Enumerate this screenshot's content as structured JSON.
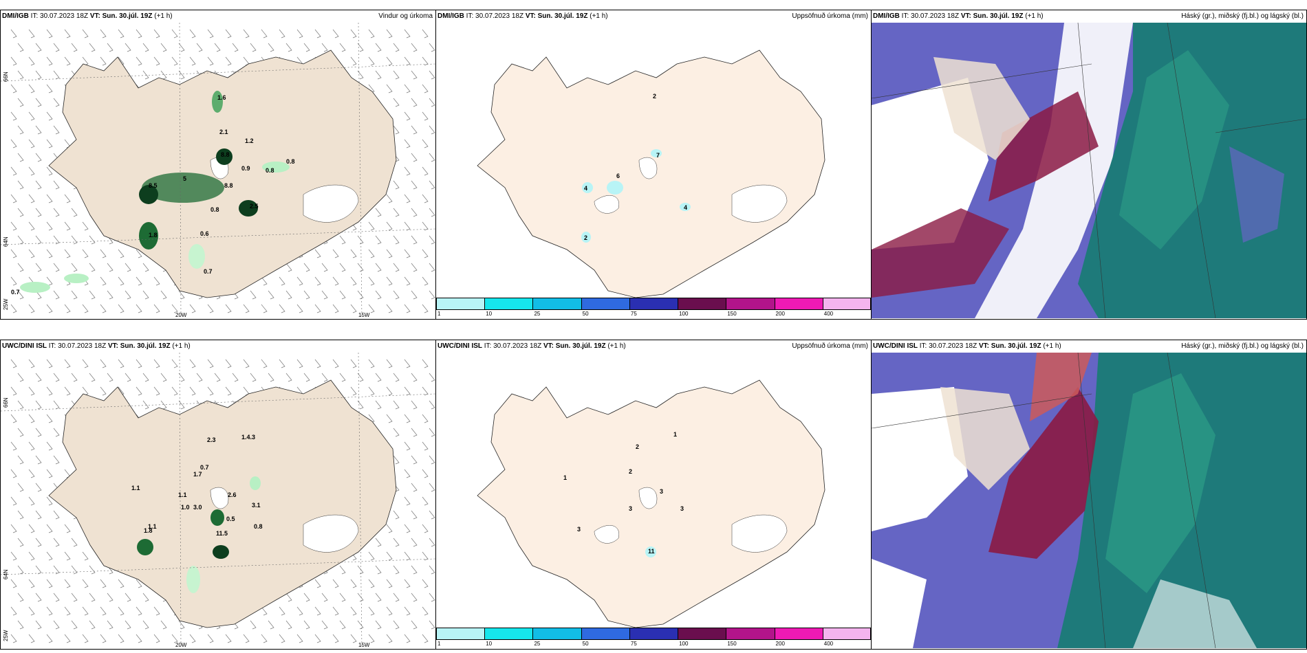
{
  "panels": [
    {
      "model": "DMI/IGB",
      "it": "IT: 30.07.2023 18Z",
      "vt_label": "VT:",
      "vt": "Sun. 30.júl. 19Z",
      "lead": "(+1 h)",
      "right": "Vindur og úrkoma"
    },
    {
      "model": "DMI/IGB",
      "it": "IT: 30.07.2023 18Z",
      "vt_label": "VT:",
      "vt": "Sun. 30.júl. 19Z",
      "lead": "(+1 h)",
      "right": "Uppsöfnuð úrkoma (mm)"
    },
    {
      "model": "DMI/IGB",
      "it": "IT: 30.07.2023 18Z",
      "vt_label": "VT:",
      "vt": "Sun. 30.júl. 19Z",
      "lead": "(+1 h)",
      "right": "Háský (gr.), miðský (fj.bl.) og lágský (bl.)"
    },
    {
      "model": "UWC/DINI ISL",
      "it": "IT: 30.07.2023 18Z",
      "vt_label": "VT:",
      "vt": "Sun. 30.júl. 19Z",
      "lead": "(+1 h)",
      "right": "Uppsöfnuð úrkoma (mm)"
    },
    {
      "model": "UWC/DINI ISL",
      "it": "IT: 30.07.2023 18Z",
      "vt_label": "VT:",
      "vt": "Sun. 30.júl. 19Z",
      "lead": "(+1 h)",
      "right": "Uppsöfnuð úrkoma (mm)"
    },
    {
      "model": "UWC/DINI ISL",
      "it": "IT: 30.07.2023 18Z",
      "vt_label": "VT:",
      "vt": "Sun. 30.júl. 19Z",
      "lead": "(+1 h)",
      "right": "Háský (gr.), miðský (fj.bl.) og lágský (bl.)"
    }
  ],
  "axis": {
    "lat66": "66N",
    "lat64": "64N",
    "w20": "20W",
    "w15": "15W",
    "w25": "25W"
  },
  "colorbar": {
    "labels": [
      "1",
      "10",
      "25",
      "50",
      "75",
      "100",
      "150",
      "200",
      "400"
    ],
    "colors": [
      "#b8f4f6",
      "#16e6ec",
      "#12bde6",
      "#2f6ae0",
      "#2a2fb2",
      "#6a0e4e",
      "#b2148a",
      "#ee1ab4",
      "#f4b4ee"
    ]
  },
  "wind_labels_top": [
    "1.6",
    "2.1",
    "1.2",
    "8.8",
    "0.9",
    "0.8",
    "0.8",
    "8.5",
    "5",
    "8.8",
    "0.8",
    "2.5",
    "0.6",
    "1.8",
    "0.7",
    "0.7"
  ],
  "wind_labels_bottom": [
    "2.3",
    "1.4.3",
    "0.7",
    "1.7",
    "1.1",
    "1.1",
    "2.6",
    "1.0",
    "3.0",
    "3.1",
    "1.1",
    "0.5",
    "1.8",
    "11.5",
    "0.8"
  ],
  "accum_labels_top": [
    "2",
    "7",
    "4",
    "6",
    "4",
    "2"
  ],
  "accum_labels_bottom": [
    "1",
    "2",
    "2",
    "1",
    "3",
    "3",
    "3",
    "3",
    "11"
  ],
  "colors": {
    "land": "#efe2d2",
    "land_accum": "#fcefe3",
    "cloud_low": "#6565c4",
    "cloud_high": "#1e7a7a",
    "cloud_mid": "#8b1a44"
  }
}
